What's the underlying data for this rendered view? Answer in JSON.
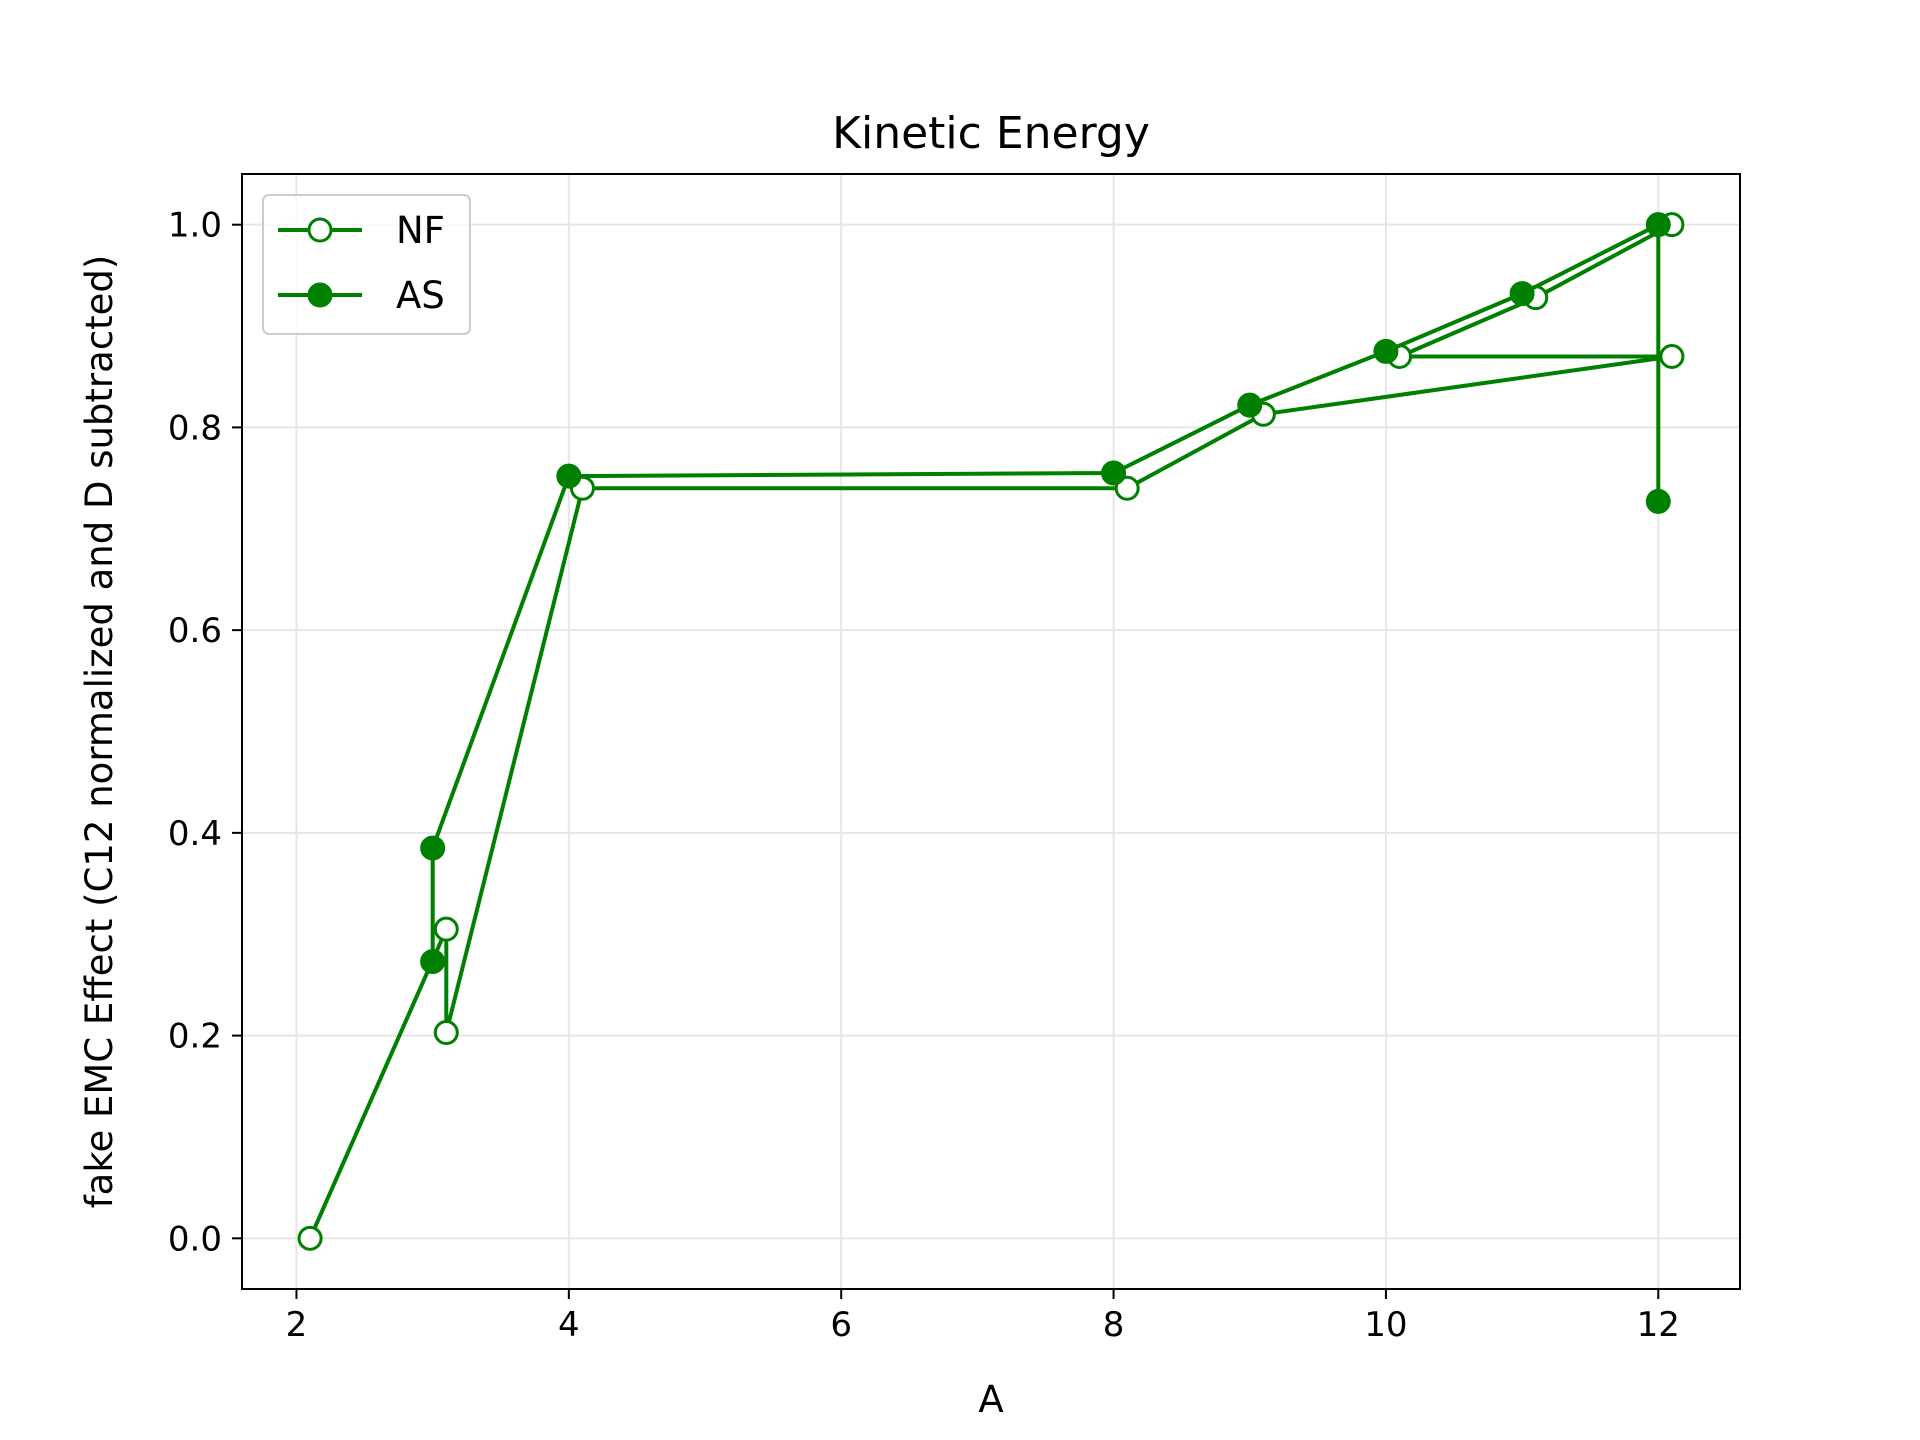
{
  "chart_data": {
    "type": "line",
    "title": "Kinetic Energy",
    "xlabel": "A",
    "ylabel": "fake EMC Effect (C12 normalized and D subtracted)",
    "xlim": [
      1.6,
      12.6
    ],
    "ylim": [
      -0.05,
      1.05
    ],
    "xticks": [
      2,
      4,
      6,
      8,
      10,
      12
    ],
    "yticks": [
      0.0,
      0.2,
      0.4,
      0.6,
      0.8,
      1.0
    ],
    "xtick_labels": [
      "2",
      "4",
      "6",
      "8",
      "10",
      "12"
    ],
    "ytick_labels": [
      "0.0",
      "0.2",
      "0.4",
      "0.6",
      "0.8",
      "1.0"
    ],
    "grid": true,
    "legend_position": "upper-left",
    "color": "#008000",
    "series": [
      {
        "name": "NF",
        "marker": "open-circle",
        "x": [
          2.1,
          3.1,
          3.1,
          4.1,
          8.1,
          9.1,
          12.1,
          10.1,
          11.1,
          12.1
        ],
        "y": [
          0.0,
          0.305,
          0.203,
          0.74,
          0.74,
          0.813,
          0.87,
          0.87,
          0.928,
          1.0
        ]
      },
      {
        "name": "AS",
        "marker": "filled-circle",
        "x": [
          3.0,
          3.0,
          4.0,
          8.0,
          9.0,
          10.0,
          11.0,
          12.0,
          12.0
        ],
        "y": [
          0.273,
          0.385,
          0.752,
          0.755,
          0.822,
          0.875,
          0.932,
          1.0,
          0.727
        ]
      }
    ]
  }
}
